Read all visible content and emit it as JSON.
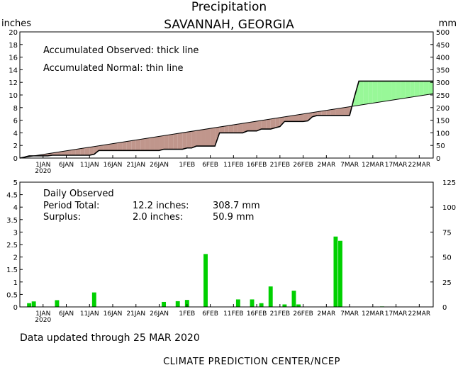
{
  "header": {
    "title": "Precipitation",
    "location": "SAVANNAH, GEORGIA"
  },
  "footer": {
    "updated": "Data updated through 25 MAR 2020",
    "credit": "CLIMATE PREDICTION CENTER/NCEP"
  },
  "colors": {
    "surplus": "#98f898",
    "deficit": "#c0968c",
    "bars": "#00d000",
    "axis": "#000000"
  },
  "chart_data": [
    {
      "type": "area",
      "title": "Precipitation",
      "subtitle": "SAVANNAH, GEORGIA",
      "ylabel_left": "inches",
      "ylabel_right": "mm",
      "annotations": [
        "Accumulated Observed: thick line",
        "Accumulated Normal: thin line"
      ],
      "ylim": [
        0,
        20
      ],
      "yticks": [
        0,
        2,
        4,
        6,
        8,
        10,
        12,
        14,
        16,
        18,
        20
      ],
      "ylim_right": [
        0,
        500
      ],
      "yticks_right": [
        0,
        50,
        100,
        150,
        200,
        250,
        300,
        350,
        400,
        450,
        500
      ],
      "x_start_day": -4,
      "x_end_day": 85,
      "xticks": [
        "1JAN",
        "6JAN",
        "11JAN",
        "16JAN",
        "21JAN",
        "26JAN",
        "1FEB",
        "6FEB",
        "11FEB",
        "16FEB",
        "21FEB",
        "26FEB",
        "2MAR",
        "7MAR",
        "12MAR",
        "17MAR",
        "22MAR"
      ],
      "xtick_days": [
        1,
        6,
        11,
        16,
        21,
        26,
        32,
        37,
        42,
        47,
        52,
        57,
        62,
        67,
        72,
        77,
        82
      ],
      "xtick_year": "2020",
      "observed": {
        "day": [
          -4,
          -3,
          -2,
          -1,
          0,
          1,
          2,
          3,
          4,
          5,
          6,
          7,
          8,
          9,
          10,
          11,
          12,
          13,
          14,
          15,
          16,
          17,
          18,
          19,
          20,
          21,
          22,
          23,
          24,
          25,
          26,
          27,
          28,
          29,
          30,
          31,
          32,
          33,
          34,
          35,
          36,
          37,
          38,
          39,
          40,
          41,
          42,
          43,
          44,
          45,
          46,
          47,
          48,
          49,
          50,
          51,
          52,
          53,
          54,
          55,
          56,
          57,
          58,
          59,
          60,
          61,
          62,
          63,
          64,
          65,
          66,
          67,
          68,
          69,
          70,
          71,
          72,
          73,
          74,
          75,
          76,
          77,
          78,
          79,
          80,
          81,
          82,
          83,
          84,
          85
        ],
        "inches": [
          0,
          0.15,
          0.35,
          0.35,
          0.35,
          0.35,
          0.35,
          0.45,
          0.45,
          0.45,
          0.45,
          0.45,
          0.45,
          0.45,
          0.45,
          0.45,
          0.6,
          1.2,
          1.2,
          1.2,
          1.2,
          1.2,
          1.2,
          1.2,
          1.2,
          1.2,
          1.2,
          1.2,
          1.2,
          1.2,
          1.2,
          1.4,
          1.4,
          1.4,
          1.4,
          1.4,
          1.6,
          1.6,
          1.9,
          1.9,
          1.9,
          1.9,
          1.9,
          4.0,
          4.0,
          4.0,
          4.0,
          4.0,
          4.0,
          4.3,
          4.3,
          4.3,
          4.6,
          4.6,
          4.6,
          4.8,
          5.0,
          5.8,
          5.8,
          5.8,
          5.8,
          5.8,
          5.9,
          6.55,
          6.75,
          6.75,
          6.75,
          6.75,
          6.75,
          6.75,
          6.75,
          6.75,
          9.6,
          12.2,
          12.2,
          12.2,
          12.2,
          12.2,
          12.2,
          12.2,
          12.2,
          12.2,
          12.2,
          12.2,
          12.2,
          12.2,
          12.2,
          12.2,
          12.2,
          12.2
        ]
      },
      "normal": {
        "day": [
          -4,
          85
        ],
        "inches": [
          0,
          10.2
        ]
      }
    },
    {
      "type": "bar",
      "title": "Daily Observed",
      "stats": [
        [
          "Period Total:",
          "12.2 inches:",
          "308.7 mm"
        ],
        [
          "Surplus:",
          "2.0 inches:",
          "50.9 mm"
        ]
      ],
      "ylim": [
        0,
        5
      ],
      "yticks": [
        "0",
        "0.5",
        "1",
        "1.5",
        "2",
        "2.5",
        "3",
        "3.5",
        "4",
        "4.5",
        "5"
      ],
      "yticks_right": [
        "0",
        "25",
        "50",
        "75",
        "100",
        "125"
      ],
      "x_start_day": -4,
      "x_end_day": 85,
      "xticks": [
        "1JAN",
        "6JAN",
        "11JAN",
        "16JAN",
        "21JAN",
        "26JAN",
        "1FEB",
        "6FEB",
        "11FEB",
        "16FEB",
        "21FEB",
        "26FEB",
        "2MAR",
        "7MAR",
        "12MAR",
        "17MAR",
        "22MAR"
      ],
      "xtick_days": [
        1,
        6,
        11,
        16,
        21,
        26,
        32,
        37,
        42,
        47,
        52,
        57,
        62,
        67,
        72,
        77,
        82
      ],
      "xtick_year": "2020",
      "days": [
        -2,
        -1,
        4,
        12,
        27,
        30,
        32,
        36,
        43,
        46,
        48,
        50,
        53,
        55,
        56,
        64,
        65,
        74
      ],
      "values": [
        0.15,
        0.22,
        0.27,
        0.58,
        0.2,
        0.23,
        0.28,
        2.12,
        0.3,
        0.3,
        0.15,
        0.82,
        0.1,
        0.65,
        0.1,
        2.82,
        2.65,
        0.02
      ]
    }
  ]
}
